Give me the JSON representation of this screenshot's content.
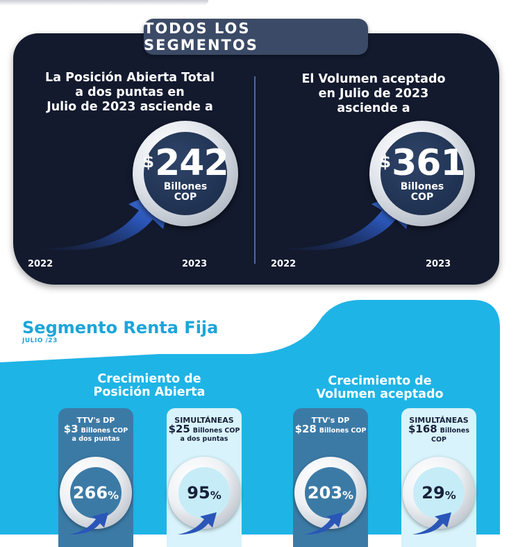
{
  "header": {
    "title": "TODOS LOS SEGMENTOS"
  },
  "position_stat": {
    "text": "La Posición Abierta Total\na dos puntas en\nJulio de 2023 asciende a",
    "currency": "$",
    "value": "242",
    "unit_line1": "Billones",
    "unit_line2": "COP",
    "year_start": "2022",
    "year_end": "2023"
  },
  "volume_stat": {
    "text": "El Volumen aceptado\nen Julio de 2023\nasciende a",
    "currency": "$",
    "value": "361",
    "unit_line1": "Billones",
    "unit_line2": "COP",
    "year_start": "2022",
    "year_end": "2023"
  },
  "segment": {
    "title": "Segmento Renta Fija",
    "subtitle": "JULIO /23",
    "growth_position": {
      "title": "Crecimiento de\nPosición Abierta",
      "cards": [
        {
          "label": "TTV's DP",
          "amount": "$3",
          "unit": "Billones COP",
          "note": "a dos puntas",
          "growth": "266",
          "pct": "%"
        },
        {
          "label": "SIMULTÁNEAS",
          "amount": "$25",
          "unit": "Billones COP",
          "note": "a dos puntas",
          "growth": "95",
          "pct": "%"
        }
      ]
    },
    "growth_volume": {
      "title": "Crecimiento de\nVolumen aceptado",
      "cards": [
        {
          "label": "TTV's DP",
          "amount": "$28",
          "unit": "Billones COP",
          "growth": "203",
          "pct": "%"
        },
        {
          "label": "SIMULTÁNEAS",
          "amount": "$168",
          "unit": "Billones COP",
          "growth": "29",
          "pct": "%"
        }
      ]
    }
  },
  "colors": {
    "dark_panel": "#131a2e",
    "title_badge": "#3b4a66",
    "cyan": "#1fb4e6",
    "segment_title": "#1da5d9",
    "card_dark": "#3c7aa6",
    "card_light": "#d8f3fb",
    "arrow": "#2a56b8"
  },
  "icons": [
    "growth-arrow-icon"
  ]
}
